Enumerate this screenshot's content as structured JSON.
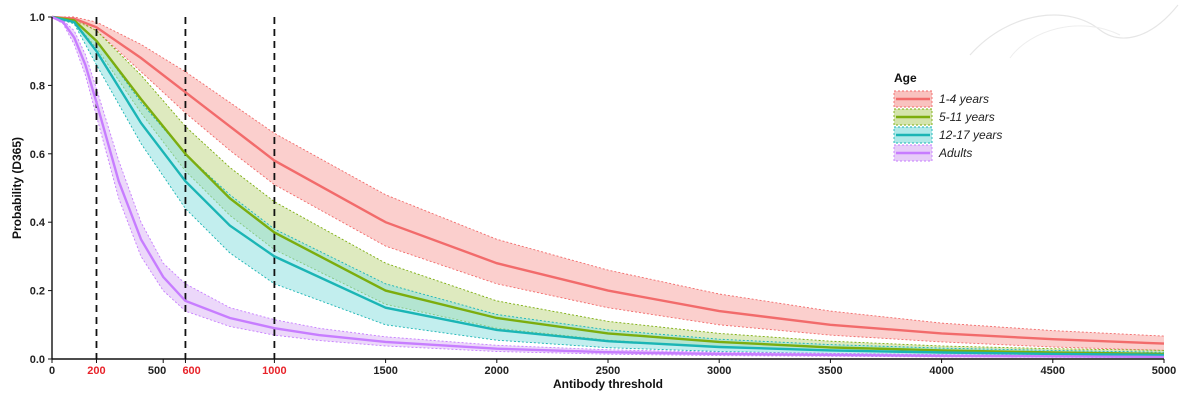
{
  "chart_data": {
    "type": "line",
    "xlabel": "Antibody threshold",
    "ylabel": "Probability (D365)",
    "xlim": [
      0,
      5000
    ],
    "ylim": [
      0,
      1
    ],
    "x_ticks": [
      0,
      200,
      500,
      600,
      1000,
      1500,
      2000,
      2500,
      3000,
      3500,
      4000,
      4500,
      5000
    ],
    "x_tick_labels": [
      "0",
      "200",
      "500",
      "600",
      "1000",
      "1500",
      "2000",
      "2500",
      "3000",
      "3500",
      "4000",
      "4500",
      "5000"
    ],
    "highlighted_x_ticks": [
      200,
      600,
      1000
    ],
    "highlight_color": "#e8232a",
    "y_ticks": [
      0,
      0.2,
      0.4,
      0.6,
      0.8,
      1.0
    ],
    "y_tick_labels": [
      "0.0",
      "0.2",
      "0.4",
      "0.6",
      "0.8",
      "1.0"
    ],
    "vertical_lines": [
      200,
      600,
      1000
    ],
    "legend": {
      "title": "Age",
      "position": "right"
    },
    "grid": false,
    "series": [
      {
        "name": "1-4 years",
        "color": "#f26b6b",
        "band_color": "#f7a8a4",
        "x": [
          0,
          100,
          200,
          400,
          600,
          800,
          1000,
          1500,
          2000,
          2500,
          3000,
          3500,
          4000,
          4500,
          5000
        ],
        "values": [
          1.0,
          0.995,
          0.97,
          0.88,
          0.78,
          0.68,
          0.58,
          0.4,
          0.28,
          0.2,
          0.14,
          0.1,
          0.075,
          0.058,
          0.045
        ],
        "lower": [
          1.0,
          0.99,
          0.96,
          0.84,
          0.72,
          0.61,
          0.51,
          0.33,
          0.22,
          0.15,
          0.1,
          0.07,
          0.05,
          0.035,
          0.025
        ],
        "upper": [
          1.0,
          1.0,
          0.985,
          0.92,
          0.84,
          0.75,
          0.66,
          0.48,
          0.35,
          0.26,
          0.19,
          0.14,
          0.105,
          0.083,
          0.067
        ]
      },
      {
        "name": "5-11 years",
        "color": "#7cad0e",
        "band_color": "#c2d98a",
        "x": [
          0,
          100,
          200,
          400,
          600,
          800,
          1000,
          1500,
          2000,
          2500,
          3000,
          3500,
          4000,
          4500,
          5000
        ],
        "values": [
          1.0,
          0.99,
          0.93,
          0.76,
          0.6,
          0.47,
          0.37,
          0.2,
          0.12,
          0.075,
          0.05,
          0.034,
          0.025,
          0.019,
          0.015
        ],
        "lower": [
          1.0,
          0.985,
          0.91,
          0.72,
          0.55,
          0.42,
          0.32,
          0.16,
          0.09,
          0.055,
          0.035,
          0.024,
          0.017,
          0.012,
          0.009
        ],
        "upper": [
          1.0,
          0.995,
          0.96,
          0.83,
          0.68,
          0.56,
          0.46,
          0.28,
          0.17,
          0.11,
          0.075,
          0.052,
          0.038,
          0.03,
          0.025
        ]
      },
      {
        "name": "12-17 years",
        "color": "#1bb5b5",
        "band_color": "#8fe0e0",
        "x": [
          0,
          100,
          200,
          400,
          600,
          800,
          1000,
          1500,
          2000,
          2500,
          3000,
          3500,
          4000,
          4500,
          5000
        ],
        "values": [
          1.0,
          0.985,
          0.9,
          0.69,
          0.52,
          0.39,
          0.3,
          0.15,
          0.085,
          0.052,
          0.035,
          0.025,
          0.019,
          0.015,
          0.012
        ],
        "lower": [
          1.0,
          0.98,
          0.86,
          0.63,
          0.44,
          0.31,
          0.22,
          0.1,
          0.055,
          0.033,
          0.022,
          0.016,
          0.012,
          0.009,
          0.007
        ],
        "upper": [
          1.0,
          0.99,
          0.93,
          0.75,
          0.6,
          0.48,
          0.38,
          0.22,
          0.13,
          0.085,
          0.058,
          0.042,
          0.032,
          0.025,
          0.02
        ]
      },
      {
        "name": "Adults",
        "color": "#c77dff",
        "band_color": "#ddb8f5",
        "x": [
          0,
          50,
          100,
          150,
          200,
          300,
          400,
          500,
          600,
          800,
          1000,
          1200,
          1500,
          2000,
          2500,
          3000,
          4000,
          5000
        ],
        "values": [
          1.0,
          0.985,
          0.94,
          0.86,
          0.75,
          0.52,
          0.35,
          0.24,
          0.17,
          0.12,
          0.09,
          0.07,
          0.05,
          0.03,
          0.02,
          0.015,
          0.009,
          0.006
        ],
        "lower": [
          1.0,
          0.98,
          0.92,
          0.83,
          0.71,
          0.47,
          0.3,
          0.2,
          0.14,
          0.095,
          0.07,
          0.054,
          0.038,
          0.022,
          0.014,
          0.01,
          0.006,
          0.004
        ],
        "upper": [
          1.0,
          0.99,
          0.96,
          0.89,
          0.79,
          0.58,
          0.4,
          0.28,
          0.22,
          0.15,
          0.115,
          0.09,
          0.065,
          0.04,
          0.027,
          0.02,
          0.013,
          0.009
        ]
      }
    ]
  }
}
